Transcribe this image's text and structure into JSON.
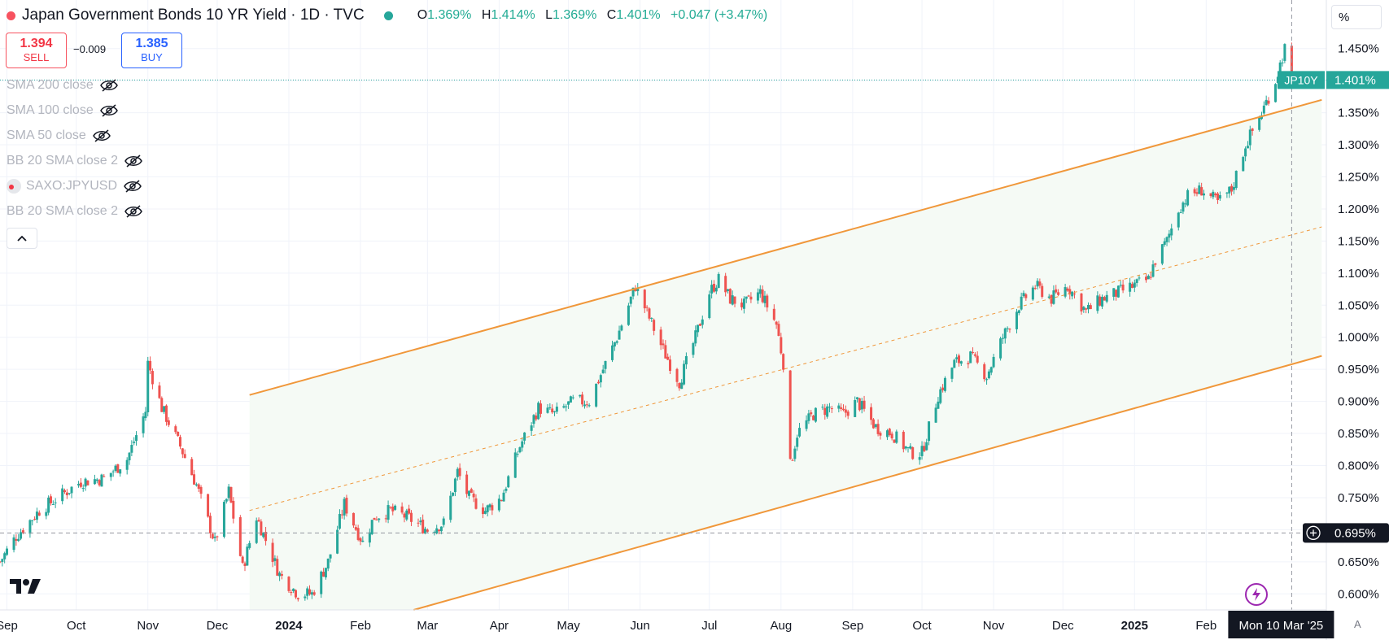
{
  "header": {
    "title": "Japan Government Bonds 10 YR Yield · 1D · TVC",
    "ohlc": [
      {
        "k": "O",
        "v": "1.369%"
      },
      {
        "k": "H",
        "v": "1.414%"
      },
      {
        "k": "L",
        "v": "1.369%"
      },
      {
        "k": "C",
        "v": "1.401%"
      }
    ],
    "change": "+0.047 (+3.47%)"
  },
  "trade": {
    "sell_price": "1.394",
    "sell_label": "SELL",
    "spread": "−0.009",
    "buy_price": "1.385",
    "buy_label": "BUY"
  },
  "indicators": [
    {
      "label": "SMA 200 close"
    },
    {
      "label": "SMA 100 close"
    },
    {
      "label": "SMA 50 close"
    },
    {
      "label": "BB 20 SMA close 2"
    },
    {
      "label": "SAXO:JPYUSD"
    },
    {
      "label": "BB 20 SMA close 2"
    }
  ],
  "scale_button": "%",
  "auto_label": "A",
  "colors": {
    "up": "#26a69a",
    "down": "#ef5350",
    "channel": "#f0973a",
    "channel_fill": "#f5faf5",
    "last_price_bg": "#26a69a",
    "crosshair_bg": "#131722"
  },
  "chart_data": {
    "type": "candlestick",
    "title": "Japan Government Bonds 10 YR Yield",
    "ylim": [
      0.575,
      1.475
    ],
    "y_ticks": [
      "1.450%",
      "1.400%",
      "1.350%",
      "1.300%",
      "1.250%",
      "1.200%",
      "1.150%",
      "1.100%",
      "1.050%",
      "1.000%",
      "0.950%",
      "0.900%",
      "0.850%",
      "0.800%",
      "0.750%",
      "0.700%",
      "0.650%",
      "0.600%"
    ],
    "x_ticks": [
      "Sep",
      "Oct",
      "Nov",
      "Dec",
      "2024",
      "Feb",
      "Mar",
      "Apr",
      "May",
      "Jun",
      "Jul",
      "Aug",
      "Sep",
      "Oct",
      "Nov",
      "Dec",
      "2025",
      "Feb"
    ],
    "x_tick_dates": [
      "2023-09-01",
      "2023-10-01",
      "2023-11-01",
      "2023-12-01",
      "2024-01-01",
      "2024-02-01",
      "2024-03-01",
      "2024-04-01",
      "2024-05-01",
      "2024-06-01",
      "2024-07-01",
      "2024-08-01",
      "2024-09-01",
      "2024-10-01",
      "2024-11-01",
      "2024-12-01",
      "2025-01-01",
      "2025-02-01"
    ],
    "x_range": [
      "2023-08-29",
      "2025-03-25"
    ],
    "anchors": [
      [
        "2023-08-29",
        0.65
      ],
      [
        "2023-09-05",
        0.69
      ],
      [
        "2023-09-15",
        0.73
      ],
      [
        "2023-09-25",
        0.755
      ],
      [
        "2023-10-03",
        0.775
      ],
      [
        "2023-10-13",
        0.78
      ],
      [
        "2023-10-23",
        0.81
      ],
      [
        "2023-10-31",
        0.885
      ],
      [
        "2023-11-01",
        0.96
      ],
      [
        "2023-11-07",
        0.89
      ],
      [
        "2023-11-15",
        0.83
      ],
      [
        "2023-11-22",
        0.77
      ],
      [
        "2023-11-30",
        0.68
      ],
      [
        "2023-12-06",
        0.76
      ],
      [
        "2023-12-12",
        0.64
      ],
      [
        "2023-12-18",
        0.72
      ],
      [
        "2023-12-28",
        0.63
      ],
      [
        "2024-01-05",
        0.6
      ],
      [
        "2024-01-11",
        0.6
      ],
      [
        "2024-01-18",
        0.65
      ],
      [
        "2024-01-25",
        0.74
      ],
      [
        "2024-02-02",
        0.68
      ],
      [
        "2024-02-07",
        0.72
      ],
      [
        "2024-02-14",
        0.73
      ],
      [
        "2024-02-21",
        0.72
      ],
      [
        "2024-03-01",
        0.7
      ],
      [
        "2024-03-08",
        0.71
      ],
      [
        "2024-03-14",
        0.79
      ],
      [
        "2024-03-19",
        0.75
      ],
      [
        "2024-03-26",
        0.73
      ],
      [
        "2024-04-02",
        0.75
      ],
      [
        "2024-04-10",
        0.83
      ],
      [
        "2024-04-18",
        0.89
      ],
      [
        "2024-04-25",
        0.88
      ],
      [
        "2024-05-03",
        0.9
      ],
      [
        "2024-05-10",
        0.9
      ],
      [
        "2024-05-16",
        0.95
      ],
      [
        "2024-05-22",
        1.0
      ],
      [
        "2024-05-30",
        1.08
      ],
      [
        "2024-06-05",
        1.03
      ],
      [
        "2024-06-11",
        0.98
      ],
      [
        "2024-06-18",
        0.93
      ],
      [
        "2024-06-25",
        1.0
      ],
      [
        "2024-07-01",
        1.07
      ],
      [
        "2024-07-05",
        1.09
      ],
      [
        "2024-07-10",
        1.06
      ],
      [
        "2024-07-16",
        1.05
      ],
      [
        "2024-07-23",
        1.07
      ],
      [
        "2024-07-30",
        1.02
      ],
      [
        "2024-08-02",
        0.96
      ],
      [
        "2024-08-05",
        0.8
      ],
      [
        "2024-08-08",
        0.85
      ],
      [
        "2024-08-15",
        0.88
      ],
      [
        "2024-08-22",
        0.89
      ],
      [
        "2024-08-28",
        0.88
      ],
      [
        "2024-09-03",
        0.9
      ],
      [
        "2024-09-11",
        0.86
      ],
      [
        "2024-09-18",
        0.85
      ],
      [
        "2024-09-26",
        0.82
      ],
      [
        "2024-10-01",
        0.82
      ],
      [
        "2024-10-08",
        0.91
      ],
      [
        "2024-10-15",
        0.96
      ],
      [
        "2024-10-22",
        0.97
      ],
      [
        "2024-10-29",
        0.94
      ],
      [
        "2024-11-05",
        1.0
      ],
      [
        "2024-11-12",
        1.05
      ],
      [
        "2024-11-19",
        1.08
      ],
      [
        "2024-11-26",
        1.06
      ],
      [
        "2024-12-03",
        1.08
      ],
      [
        "2024-12-11",
        1.04
      ],
      [
        "2024-12-18",
        1.06
      ],
      [
        "2024-12-25",
        1.07
      ],
      [
        "2025-01-07",
        1.09
      ],
      [
        "2025-01-10",
        1.12
      ],
      [
        "2025-01-15",
        1.15
      ],
      [
        "2025-01-20",
        1.2
      ],
      [
        "2025-01-24",
        1.22
      ],
      [
        "2025-01-30",
        1.23
      ],
      [
        "2025-02-06",
        1.21
      ],
      [
        "2025-02-12",
        1.23
      ],
      [
        "2025-02-18",
        1.3
      ],
      [
        "2025-02-25",
        1.35
      ],
      [
        "2025-03-03",
        1.4
      ],
      [
        "2025-03-07",
        1.45
      ],
      [
        "2025-03-10",
        1.401
      ]
    ],
    "channel": {
      "upper": [
        [
          "2023-12-15",
          0.91
        ],
        [
          "2025-03-23",
          1.37
        ]
      ],
      "middle": [
        [
          "2023-12-15",
          0.73
        ],
        [
          "2025-03-23",
          1.172
        ]
      ],
      "lower": [
        [
          "2024-02-24",
          0.575
        ],
        [
          "2025-03-23",
          0.971
        ]
      ]
    },
    "last_price": {
      "label": "JP10Y",
      "value": 1.401,
      "text": "1.401%"
    },
    "crosshair": {
      "value": 0.695,
      "text": "0.695%",
      "date_label": "Mon 10 Mar '25",
      "date": "2025-03-10"
    }
  }
}
